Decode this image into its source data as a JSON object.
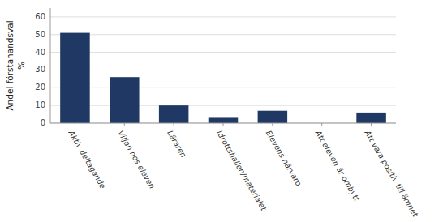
{
  "chart_data": {
    "type": "bar",
    "categories": [
      "Aktiv deltagande",
      "Viljan hos eleven",
      "Läraren",
      "Idrottshallen/materialet",
      "Elevens närvaro",
      "Att eleven är ombytt",
      "Att vara positiv till ämnet"
    ],
    "values": [
      51,
      26,
      10,
      3,
      7,
      0,
      6
    ],
    "color": "#1F3864",
    "y_label": "Andel förstahandsval\n%",
    "ylim": [
      0,
      65
    ],
    "yticks": [
      0,
      10,
      20,
      30,
      40,
      50,
      60
    ],
    "grid": true
  }
}
